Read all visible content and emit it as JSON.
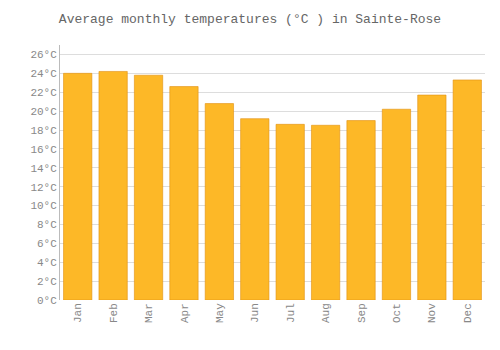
{
  "chart_data": {
    "type": "bar",
    "title": "Average monthly temperatures (°C ) in Sainte-Rose",
    "categories": [
      "Jan",
      "Feb",
      "Mar",
      "Apr",
      "May",
      "Jun",
      "Jul",
      "Aug",
      "Sep",
      "Oct",
      "Nov",
      "Dec"
    ],
    "values": [
      24.0,
      24.2,
      23.8,
      22.6,
      20.8,
      19.2,
      18.6,
      18.5,
      19.0,
      20.2,
      21.7,
      23.3
    ],
    "color": "#FDB827",
    "ylim": [
      0,
      27
    ],
    "yticks": [
      {
        "value": 0,
        "label": "0°C"
      },
      {
        "value": 2,
        "label": "2°C"
      },
      {
        "value": 4,
        "label": "4°C"
      },
      {
        "value": 6,
        "label": "6°C"
      },
      {
        "value": 8,
        "label": "8°C"
      },
      {
        "value": 10,
        "label": "10°C"
      },
      {
        "value": 12,
        "label": "12°C"
      },
      {
        "value": 14,
        "label": "14°C"
      },
      {
        "value": 16,
        "label": "16°C"
      },
      {
        "value": 18,
        "label": "18°C"
      },
      {
        "value": 20,
        "label": "20°C"
      },
      {
        "value": 22,
        "label": "22°C"
      },
      {
        "value": 24,
        "label": "24°C"
      },
      {
        "value": 26,
        "label": "26°C"
      }
    ],
    "grid": true
  }
}
